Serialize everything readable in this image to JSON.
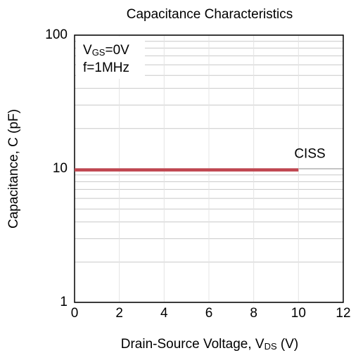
{
  "chart_data": {
    "type": "line",
    "title": "Capacitance Characteristics",
    "x_label": [
      "Drain-Source Voltage, V",
      "DS",
      " (V)"
    ],
    "y_label": "Capacitance, C (pF)",
    "annotations": [
      [
        "V",
        "GS",
        "=0V"
      ],
      "f=1MHz"
    ],
    "x": [
      0,
      10
    ],
    "series": [
      {
        "name": "CISS",
        "color": "#c0454f",
        "values": [
          9.8,
          9.8
        ]
      }
    ],
    "xlim": [
      0,
      12
    ],
    "xticks": [
      0,
      2,
      4,
      6,
      8,
      10,
      12
    ],
    "ylim": [
      1,
      100
    ],
    "yticks": [
      1,
      10,
      100
    ],
    "yminorticks": [
      2,
      3,
      4,
      5,
      6,
      7,
      8,
      9,
      20,
      30,
      40,
      50,
      60,
      70,
      80,
      90
    ],
    "log_y": true,
    "grid": true
  }
}
